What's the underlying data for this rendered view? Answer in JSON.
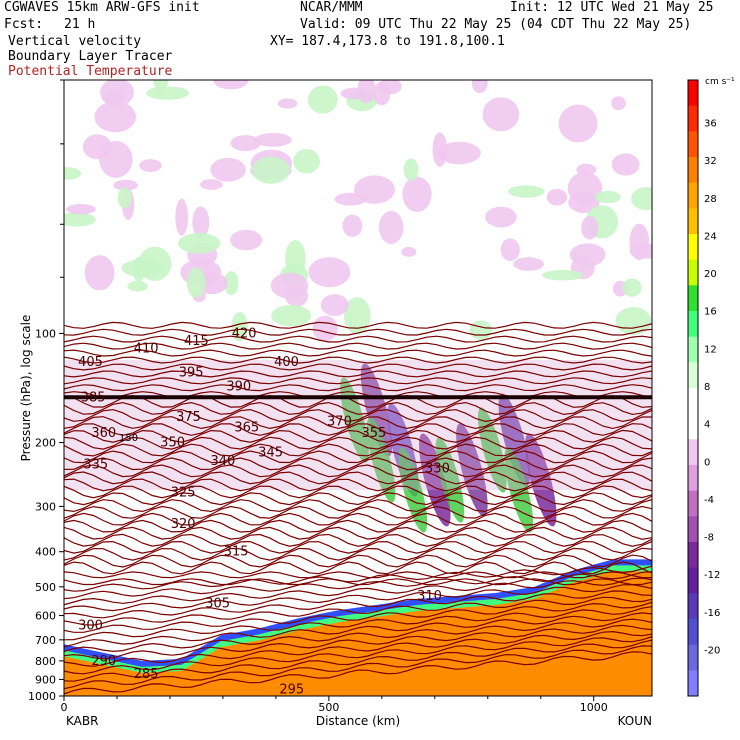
{
  "header": {
    "model": "CGWAVES 15km ARW-GFS init",
    "org": "NCAR/MMM",
    "init": "Init: 12 UTC Wed 21 May 25",
    "fcst_label": "Fcst:",
    "fcst_value": "21 h",
    "valid": "Valid: 09 UTC Thu 22 May 25 (04 CDT Thu 22 May 25)",
    "field1": "Vertical velocity",
    "field2": "Boundary Layer Tracer",
    "field3": "Potential Temperature",
    "xy": "XY= 187.4,173.8 to 191.8,100.1"
  },
  "colorbar": {
    "unit": "cm s⁻¹",
    "labels": [
      "36",
      "32",
      "28",
      "24",
      "20",
      "16",
      "12",
      "8",
      "4",
      "0",
      "-4",
      "-8",
      "-12",
      "-16",
      "-20"
    ],
    "colors": [
      "#ff0000",
      "#ff2a00",
      "#ff5500",
      "#ff8000",
      "#ffa500",
      "#ffc000",
      "#ffff00",
      "#c8ff00",
      "#30e030",
      "#40ff80",
      "#a0ffb0",
      "#d8ffd8",
      "#ffffff",
      "#ffffff",
      "#f0c8f0",
      "#e0a0e0",
      "#c070c0",
      "#a050b0",
      "#7a2a9a",
      "#6020a0",
      "#5a3ab8",
      "#5050d0",
      "#6a6ae0",
      "#8080ff"
    ]
  },
  "axes": {
    "ylabel": "Pressure (hPa), log scale",
    "xlabel": "Distance (km)",
    "left_station": "KABR",
    "right_station": "KOUN",
    "inline_label": "150"
  },
  "chart_data": {
    "type": "heatmap",
    "title": "",
    "xlabel": "Distance (km)",
    "ylabel": "Pressure (hPa), log scale",
    "x_ticks": [
      0,
      500,
      1000
    ],
    "xlim": [
      0,
      1110
    ],
    "y_ticks": [
      100,
      200,
      300,
      400,
      500,
      600,
      700,
      800,
      900,
      1000
    ],
    "ylim": [
      1000,
      20
    ],
    "y_scale": "log",
    "theta_contours": [
      {
        "label": "420",
        "x": 340,
        "p": 100
      },
      {
        "label": "415",
        "x": 250,
        "p": 105
      },
      {
        "label": "410",
        "x": 155,
        "p": 110
      },
      {
        "label": "405",
        "x": 50,
        "p": 120
      },
      {
        "label": "400",
        "x": 420,
        "p": 120
      },
      {
        "label": "395",
        "x": 240,
        "p": 128
      },
      {
        "label": "390",
        "x": 330,
        "p": 140
      },
      {
        "label": "385",
        "x": 55,
        "p": 150
      },
      {
        "label": "375",
        "x": 235,
        "p": 170
      },
      {
        "label": "370",
        "x": 520,
        "p": 175
      },
      {
        "label": "365",
        "x": 345,
        "p": 182
      },
      {
        "label": "360",
        "x": 75,
        "p": 188
      },
      {
        "label": "355",
        "x": 585,
        "p": 188
      },
      {
        "label": "350",
        "x": 205,
        "p": 200
      },
      {
        "label": "345",
        "x": 390,
        "p": 213
      },
      {
        "label": "340",
        "x": 300,
        "p": 225
      },
      {
        "label": "335",
        "x": 60,
        "p": 230
      },
      {
        "label": "330",
        "x": 705,
        "p": 236
      },
      {
        "label": "325",
        "x": 225,
        "p": 275
      },
      {
        "label": "320",
        "x": 225,
        "p": 335
      },
      {
        "label": "315",
        "x": 325,
        "p": 400
      },
      {
        "label": "310",
        "x": 690,
        "p": 530
      },
      {
        "label": "305",
        "x": 290,
        "p": 555
      },
      {
        "label": "300",
        "x": 50,
        "p": 640
      },
      {
        "label": "295",
        "x": 430,
        "p": 960
      },
      {
        "label": "290",
        "x": 75,
        "p": 800
      },
      {
        "label": "285",
        "x": 155,
        "p": 870
      }
    ],
    "tropopause_p": 150,
    "boundary_layer_top_p": [
      720,
      760,
      800,
      790,
      680,
      650,
      610,
      580,
      560,
      540,
      530,
      520,
      500,
      450,
      420,
      420
    ]
  }
}
